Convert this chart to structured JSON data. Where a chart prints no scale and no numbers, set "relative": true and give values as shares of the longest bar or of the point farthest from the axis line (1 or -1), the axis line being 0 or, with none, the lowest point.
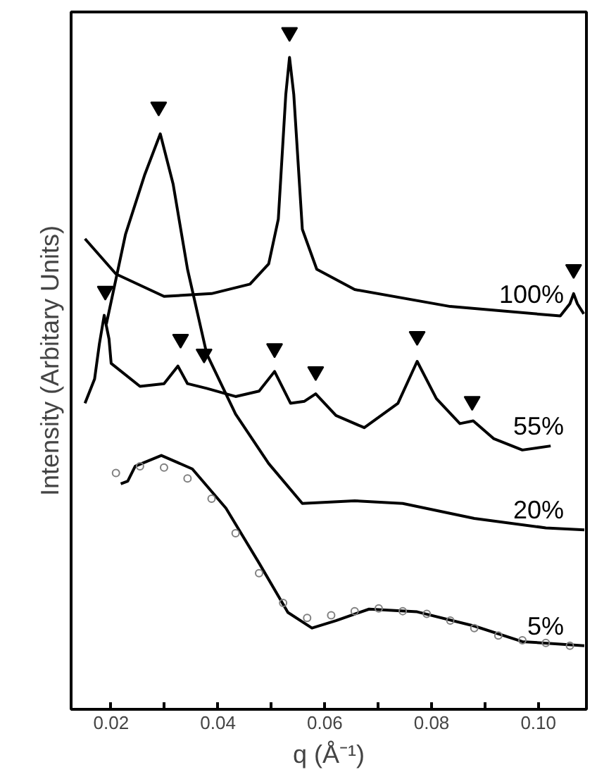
{
  "chart_data": {
    "type": "line",
    "relative": true,
    "xlabel": "q (Å⁻¹)",
    "ylabel": "Intensity (Arbitary Units)",
    "xlim": [
      0.0125,
      0.109
    ],
    "xticks": [
      {
        "value": 0.02,
        "label": "0.02"
      },
      {
        "value": 0.03,
        "label": null
      },
      {
        "value": 0.04,
        "label": "0.04"
      },
      {
        "value": 0.05,
        "label": null
      },
      {
        "value": 0.06,
        "label": "0.06"
      },
      {
        "value": 0.07,
        "label": null
      },
      {
        "value": 0.08,
        "label": "0.08"
      },
      {
        "value": 0.09,
        "label": null
      },
      {
        "value": 0.1,
        "label": "0.10"
      }
    ],
    "grid": false,
    "marker": "none",
    "line_style": "solid",
    "tick_labels": "x",
    "series": [
      {
        "name": "100%",
        "color": "#000000",
        "x": [
          0.0151,
          0.0209,
          0.0299,
          0.0388,
          0.046,
          0.0495,
          0.0513,
          0.0527,
          0.0534,
          0.0542,
          0.0558,
          0.0585,
          0.0656,
          0.0835,
          0.1041,
          0.1059,
          0.1066,
          0.1073,
          0.1085
        ],
        "values": [
          0.695,
          0.643,
          0.61,
          0.614,
          0.628,
          0.658,
          0.724,
          0.908,
          0.963,
          0.908,
          0.709,
          0.65,
          0.62,
          0.595,
          0.581,
          0.599,
          0.614,
          0.599,
          0.584
        ]
      },
      {
        "name": "55%",
        "color": "#000000",
        "x": [
          0.0151,
          0.0169,
          0.0178,
          0.0187,
          0.0196,
          0.02,
          0.0254,
          0.0299,
          0.0325,
          0.0343,
          0.0379,
          0.0433,
          0.0477,
          0.0506,
          0.0536,
          0.0562,
          0.0583,
          0.0621,
          0.0674,
          0.0737,
          0.0773,
          0.0809,
          0.0853,
          0.0878,
          0.0916,
          0.097,
          0.1023
        ],
        "values": [
          0.452,
          0.488,
          0.54,
          0.582,
          0.547,
          0.511,
          0.477,
          0.481,
          0.507,
          0.481,
          0.474,
          0.462,
          0.47,
          0.499,
          0.452,
          0.455,
          0.466,
          0.434,
          0.416,
          0.452,
          0.514,
          0.459,
          0.422,
          0.426,
          0.4,
          0.383,
          0.389
        ]
      },
      {
        "name": "20%",
        "color": "#000000",
        "x": [
          0.0191,
          0.0227,
          0.0263,
          0.0292,
          0.0316,
          0.0343,
          0.0379,
          0.0433,
          0.0495,
          0.0558,
          0.0656,
          0.0746,
          0.088,
          0.1014,
          0.1086
        ],
        "values": [
          0.569,
          0.702,
          0.79,
          0.85,
          0.776,
          0.65,
          0.525,
          0.436,
          0.363,
          0.304,
          0.308,
          0.304,
          0.282,
          0.268,
          0.265
        ]
      },
      {
        "name": "5%",
        "color": "#000000",
        "x": [
          0.0218,
          0.0231,
          0.0245,
          0.0294,
          0.0352,
          0.0415,
          0.0477,
          0.0531,
          0.0576,
          0.0621,
          0.0683,
          0.0773,
          0.088,
          0.097,
          0.1086
        ],
        "values": [
          0.333,
          0.337,
          0.359,
          0.375,
          0.355,
          0.297,
          0.216,
          0.143,
          0.12,
          0.131,
          0.148,
          0.144,
          0.123,
          0.1,
          0.094
        ]
      },
      {
        "type": "scatter",
        "marker": "circle",
        "color": "#808080",
        "x": [
          0.0209,
          0.0254,
          0.0299,
          0.0343,
          0.0388,
          0.0433,
          0.0477,
          0.0522,
          0.0567,
          0.0612,
          0.0656,
          0.0701,
          0.0746,
          0.0791,
          0.0835,
          0.088,
          0.0925,
          0.097,
          0.1014,
          0.1059
        ],
        "values": [
          0.349,
          0.359,
          0.357,
          0.341,
          0.311,
          0.26,
          0.201,
          0.157,
          0.135,
          0.139,
          0.145,
          0.149,
          0.145,
          0.141,
          0.131,
          0.12,
          0.109,
          0.102,
          0.098,
          0.094
        ]
      },
      {
        "type": "scatter",
        "marker": "triangle",
        "color": "#000000",
        "x": [
          0.0534,
          0.0289,
          0.1066,
          0.0189,
          0.033,
          0.0374,
          0.0506,
          0.0583,
          0.0773,
          0.0876
        ],
        "values": [
          1,
          0.89,
          0.65,
          0.618,
          0.547,
          0.525,
          0.533,
          0.499,
          0.551,
          0.455
        ]
      }
    ]
  }
}
